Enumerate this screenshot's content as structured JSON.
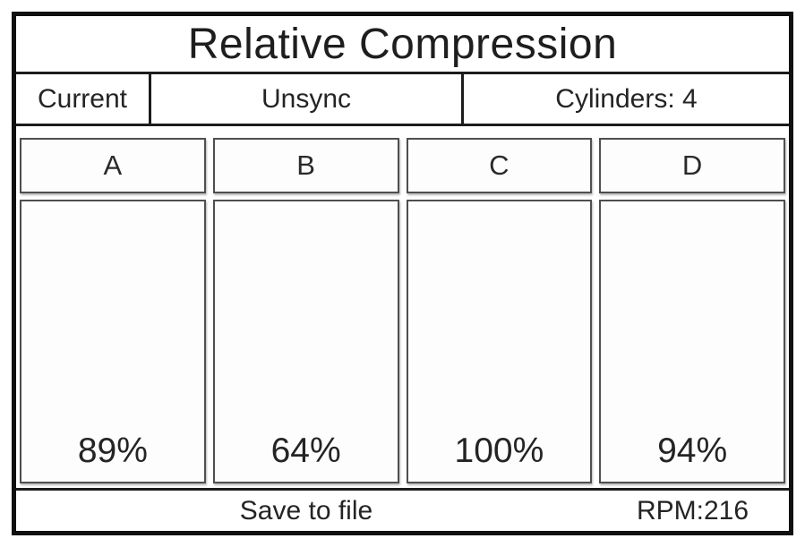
{
  "screen_title": "Relative Compression",
  "status_bar": {
    "source": "Current",
    "sync_mode": "Unsync",
    "cylinders_count": "Cylinders: 4"
  },
  "cylinders": [
    {
      "label": "A",
      "value": "89%"
    },
    {
      "label": "B",
      "value": "64%"
    },
    {
      "label": "C",
      "value": "100%"
    },
    {
      "label": "D",
      "value": "94%"
    }
  ],
  "footer": {
    "save_button": "Save to file",
    "rpm": "RPM:216"
  },
  "colors": {
    "outer_border": "#101010",
    "grid_line": "#1c1c1c",
    "box_border": "#4f4f4f",
    "text": "#222222",
    "background": "#ffffff"
  }
}
